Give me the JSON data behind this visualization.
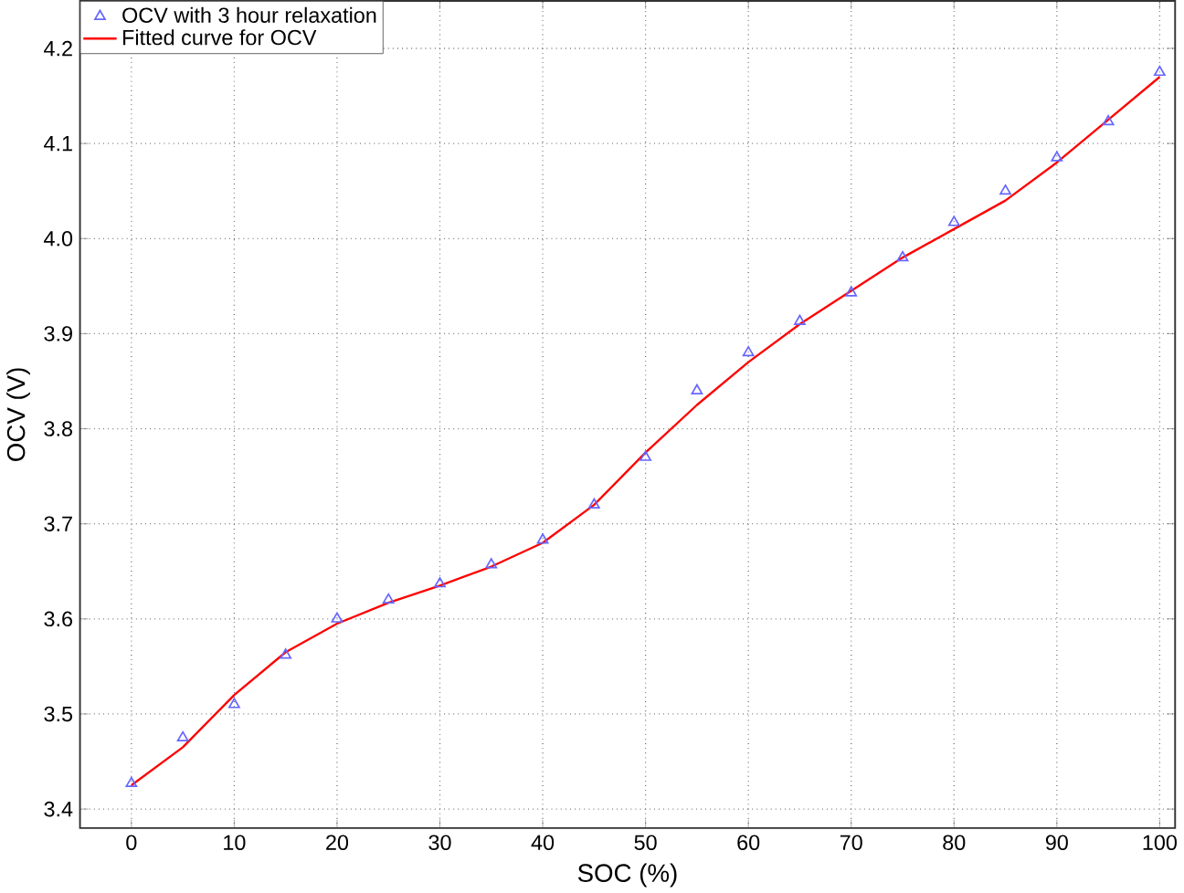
{
  "chart_data": {
    "type": "scatter",
    "xlabel": "SOC (%)",
    "ylabel": "OCV (V)",
    "xlim": [
      -5,
      101.5
    ],
    "ylim": [
      3.38,
      4.25
    ],
    "xticks": [
      0,
      10,
      20,
      30,
      40,
      50,
      60,
      70,
      80,
      90,
      100
    ],
    "yticks": [
      3.4,
      3.5,
      3.6,
      3.7,
      3.8,
      3.9,
      {
        "value": 4.0,
        "label": "4.0"
      },
      4.1,
      4.2
    ],
    "grid": true,
    "legend": "top left",
    "series": [
      {
        "name": "OCV with 3 hour relaxation",
        "marker": "triangle",
        "color": "#6666ff",
        "x": [
          0,
          5,
          10,
          15,
          20,
          25,
          30,
          35,
          40,
          45,
          50,
          55,
          60,
          65,
          70,
          75,
          80,
          85,
          90,
          95,
          100
        ],
        "values": [
          3.427,
          3.475,
          3.51,
          3.562,
          3.6,
          3.62,
          3.637,
          3.657,
          3.683,
          3.72,
          3.77,
          3.84,
          3.88,
          3.913,
          3.943,
          3.98,
          4.017,
          4.05,
          4.085,
          4.123,
          4.175
        ]
      },
      {
        "name": "Fitted curve for OCV",
        "type": "line",
        "marker": "none",
        "color": "#ff0000",
        "x": [
          0,
          5,
          10,
          15,
          20,
          25,
          30,
          35,
          40,
          45,
          50,
          55,
          60,
          65,
          70,
          75,
          80,
          85,
          90,
          95,
          100
        ],
        "values": [
          3.425,
          3.465,
          3.52,
          3.565,
          3.595,
          3.617,
          3.635,
          3.655,
          3.68,
          3.72,
          3.775,
          3.825,
          3.87,
          3.91,
          3.945,
          3.98,
          4.01,
          4.04,
          4.08,
          4.125,
          4.17
        ]
      }
    ]
  }
}
